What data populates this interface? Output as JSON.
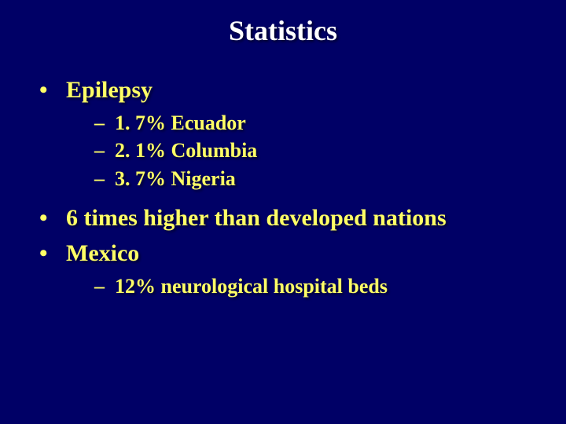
{
  "background_color": "#000066",
  "title": {
    "text": "Statistics",
    "color": "#ffffff",
    "fontsize": 36
  },
  "body_text_color": "#ffff66",
  "font_family": "Times New Roman",
  "bullets": [
    {
      "text": "Epilepsy",
      "sub": [
        {
          "text": "1. 7% Ecuador"
        },
        {
          "text": "2. 1% Columbia"
        },
        {
          "text": "3. 7% Nigeria"
        }
      ]
    },
    {
      "text": "6 times higher than developed nations",
      "sub": []
    },
    {
      "text": "Mexico",
      "sub": [
        {
          "text": "12% neurological hospital beds"
        }
      ]
    }
  ],
  "level1_bullet_char": "•",
  "level2_bullet_char": "–",
  "level1_fontsize": 30,
  "level2_fontsize": 26
}
